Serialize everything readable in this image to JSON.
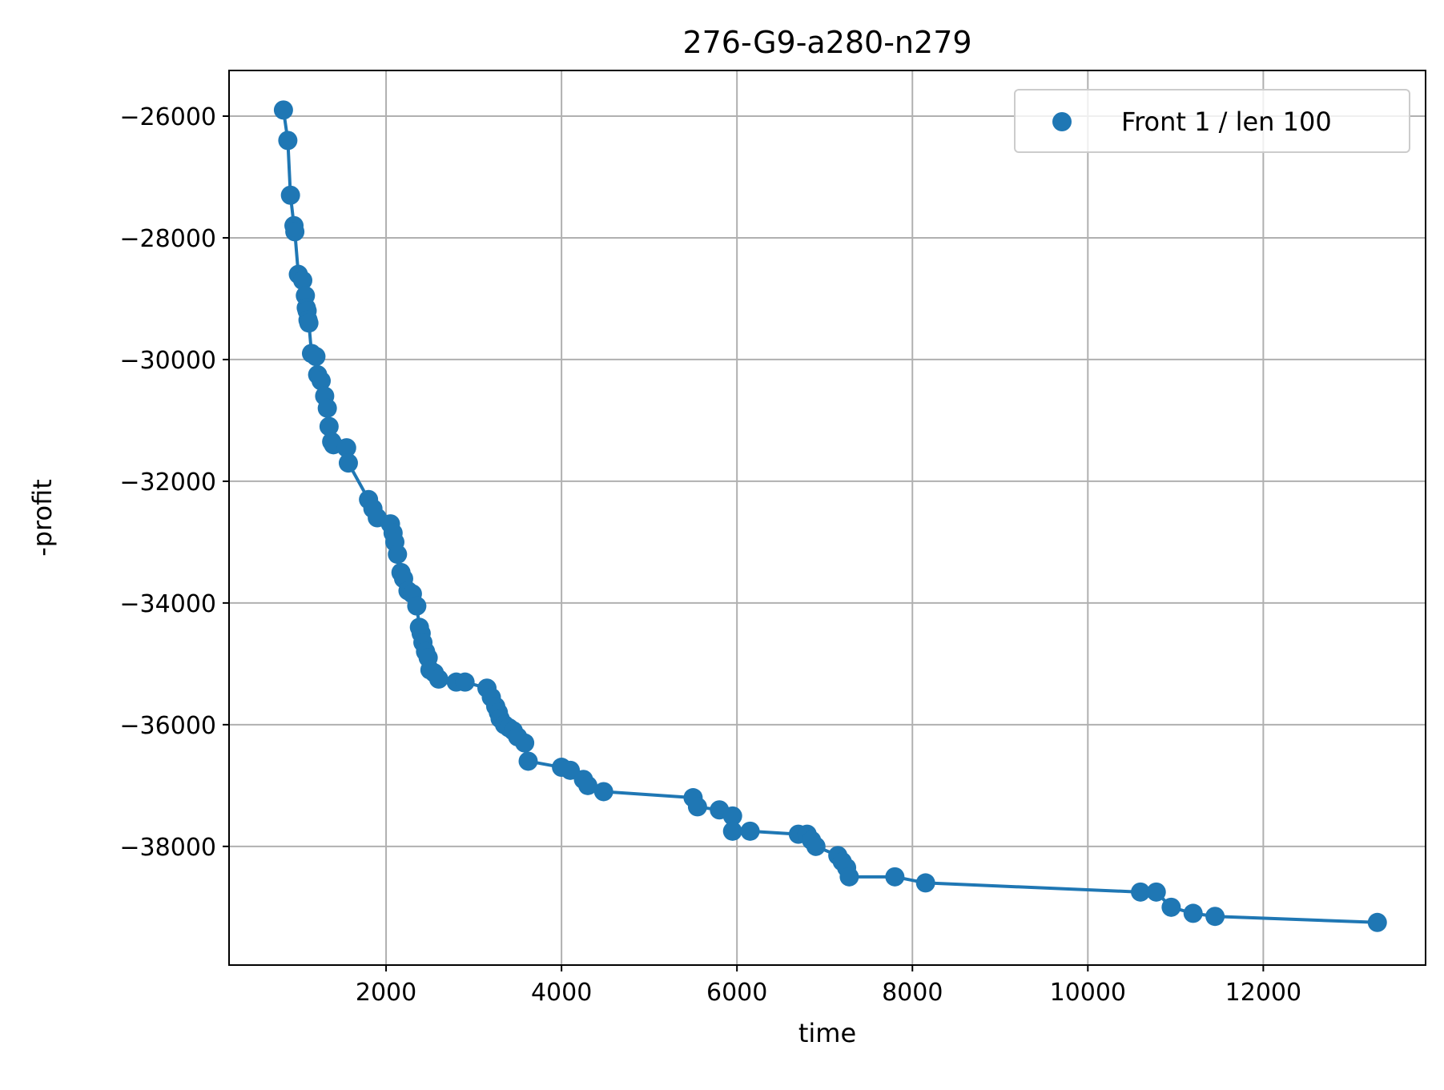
{
  "chart_data": {
    "type": "scatter",
    "title": "276-G9-a280-n279",
    "xlabel": "time",
    "ylabel": "-profit",
    "xlim": [
      210,
      13850
    ],
    "ylim": [
      -39950,
      -25250
    ],
    "xticks": [
      2000,
      4000,
      6000,
      8000,
      10000,
      12000
    ],
    "yticks": [
      -26000,
      -28000,
      -30000,
      -32000,
      -34000,
      -36000,
      -38000
    ],
    "xtick_labels": [
      "2000",
      "4000",
      "6000",
      "8000",
      "10000",
      "12000"
    ],
    "ytick_labels": [
      "−26000",
      "−28000",
      "−30000",
      "−32000",
      "−34000",
      "−36000",
      "−38000"
    ],
    "grid": true,
    "legend_position": "top-right",
    "color": "#1f77b4",
    "series": [
      {
        "name": "Front 1 / len 100",
        "connected": true,
        "x": [
          830,
          880,
          910,
          950,
          960,
          1000,
          1050,
          1080,
          1090,
          1100,
          1110,
          1120,
          1150,
          1200,
          1220,
          1260,
          1300,
          1330,
          1350,
          1380,
          1400,
          1550,
          1570,
          1800,
          1850,
          1900,
          2050,
          2080,
          2100,
          2130,
          2170,
          2200,
          2250,
          2300,
          2350,
          2380,
          2400,
          2420,
          2450,
          2480,
          2500,
          2550,
          2600,
          2800,
          2900,
          3150,
          3200,
          3250,
          3280,
          3300,
          3350,
          3400,
          3450,
          3500,
          3580,
          3620,
          4000,
          4100,
          4250,
          4300,
          4480,
          5500,
          5550,
          5800,
          5950,
          5950,
          6150,
          6700,
          6800,
          6850,
          6900,
          7150,
          7200,
          7250,
          7280,
          7800,
          8150,
          10600,
          10780,
          10950,
          11200,
          11450,
          13300
        ],
        "y": [
          -25900,
          -26400,
          -27300,
          -27800,
          -27900,
          -28600,
          -28700,
          -28950,
          -29150,
          -29200,
          -29350,
          -29400,
          -29900,
          -29950,
          -30250,
          -30350,
          -30600,
          -30800,
          -31100,
          -31350,
          -31400,
          -31450,
          -31700,
          -32300,
          -32450,
          -32600,
          -32700,
          -32850,
          -33000,
          -33200,
          -33500,
          -33600,
          -33800,
          -33850,
          -34050,
          -34400,
          -34500,
          -34650,
          -34800,
          -34900,
          -35100,
          -35150,
          -35250,
          -35300,
          -35300,
          -35400,
          -35550,
          -35700,
          -35800,
          -35900,
          -36000,
          -36050,
          -36100,
          -36200,
          -36300,
          -36600,
          -36700,
          -36750,
          -36900,
          -37000,
          -37100,
          -37200,
          -37350,
          -37400,
          -37500,
          -37750,
          -37750,
          -37800,
          -37800,
          -37900,
          -38000,
          -38150,
          -38250,
          -38350,
          -38500,
          -38500,
          -38600,
          -38750,
          -38750,
          -39000,
          -39100,
          -39150,
          -39250
        ]
      }
    ]
  }
}
